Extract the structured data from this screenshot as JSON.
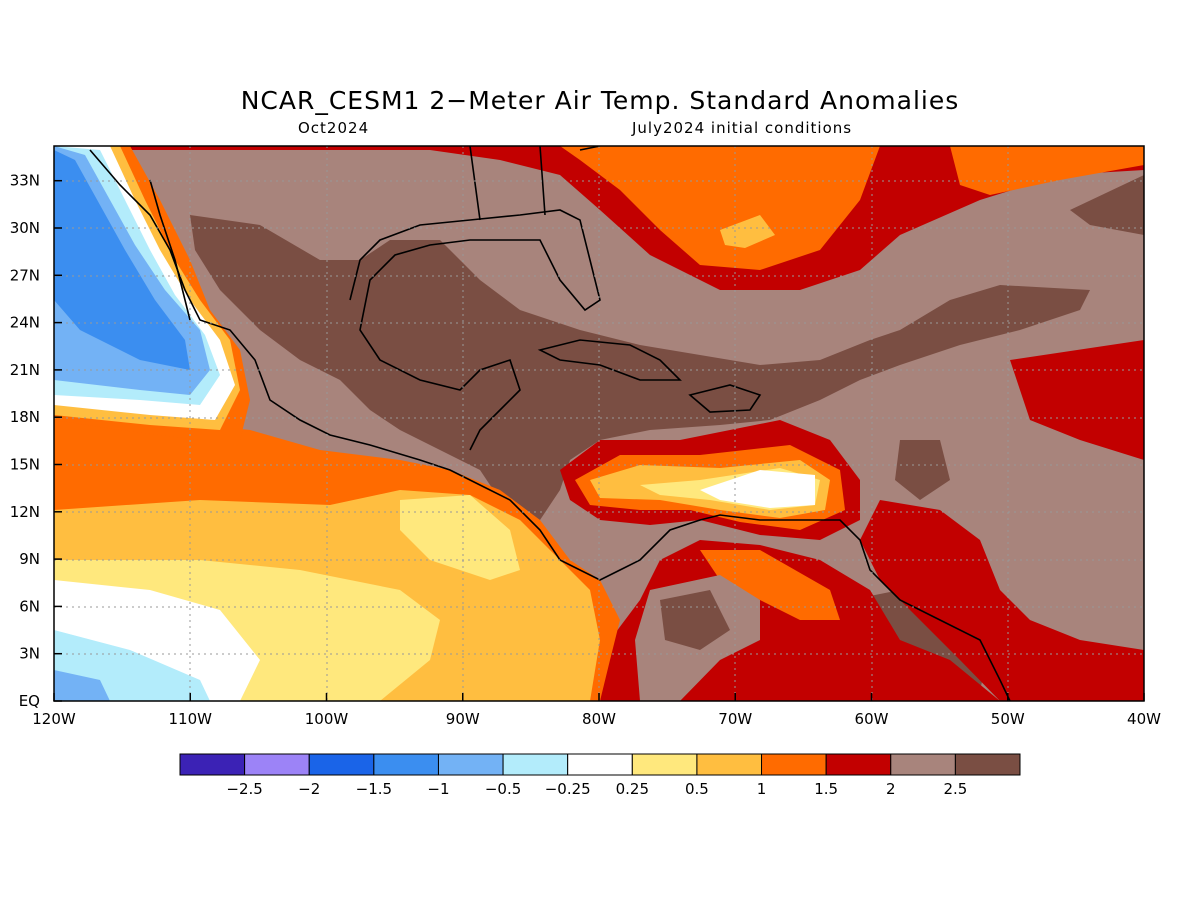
{
  "title": "NCAR_CESM1 2−Meter Air Temp. Standard Anomalies",
  "subtitle_left": "Oct2024",
  "subtitle_right": "July2024 initial conditions",
  "axes": {
    "x_ticks": [
      "120W",
      "110W",
      "100W",
      "90W",
      "80W",
      "70W",
      "60W",
      "50W",
      "40W"
    ],
    "y_ticks": [
      "EQ",
      "3N",
      "6N",
      "9N",
      "12N",
      "15N",
      "18N",
      "21N",
      "24N",
      "27N",
      "30N",
      "33N"
    ]
  },
  "colorbar": {
    "colors": [
      "#3b22b5",
      "#9c83f7",
      "#1a64e8",
      "#3b8ef0",
      "#73b2f5",
      "#b3ecfb",
      "#ffffff",
      "#ffe87d",
      "#ffbe40",
      "#ff6b00",
      "#c20000",
      "#a8847c",
      "#7a4e43"
    ],
    "labels": [
      "−2.5",
      "−2",
      "−1.5",
      "−1",
      "−0.5",
      "−0.25",
      "0.25",
      "0.5",
      "1",
      "1.5",
      "2",
      "2.5"
    ]
  }
}
